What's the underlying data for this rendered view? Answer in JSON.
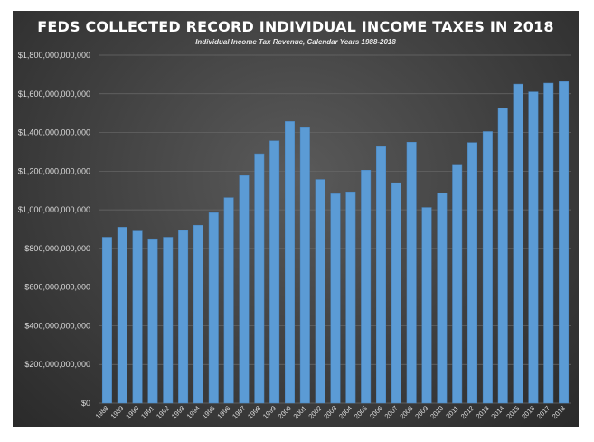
{
  "chart_data": {
    "type": "bar",
    "title": "FEDS COLLECTED RECORD INDIVIDUAL INCOME TAXES IN 2018",
    "subtitle": "Individual Income Tax Revenue, Calendar Years 1988-2018",
    "xlabel": "",
    "ylabel": "",
    "ylim": [
      0,
      1800000000000
    ],
    "grid": true,
    "y_ticks": [
      0,
      200000000000,
      400000000000,
      600000000000,
      800000000000,
      1000000000000,
      1200000000000,
      1400000000000,
      1600000000000,
      1800000000000
    ],
    "y_tick_labels": [
      "$0",
      "$200,000,000,000",
      "$400,000,000,000",
      "$600,000,000,000",
      "$800,000,000,000",
      "$1,000,000,000,000",
      "$1,200,000,000,000",
      "$1,400,000,000,000",
      "$1,600,000,000,000",
      "$1,800,000,000,000"
    ],
    "categories": [
      "1988",
      "1989",
      "1990",
      "1991",
      "1992",
      "1993",
      "1994",
      "1995",
      "1996",
      "1997",
      "1998",
      "1999",
      "2000",
      "2001",
      "2002",
      "2003",
      "2004",
      "2005",
      "2006",
      "2007",
      "2008",
      "2009",
      "2010",
      "2011",
      "2012",
      "2013",
      "2014",
      "2015",
      "2016",
      "2017",
      "2018"
    ],
    "values": [
      858000000000,
      910000000000,
      890000000000,
      850000000000,
      858000000000,
      893000000000,
      920000000000,
      985000000000,
      1063000000000,
      1177000000000,
      1290000000000,
      1357000000000,
      1457000000000,
      1425000000000,
      1157000000000,
      1083000000000,
      1093000000000,
      1205000000000,
      1327000000000,
      1140000000000,
      1350000000000,
      1012000000000,
      1088000000000,
      1235000000000,
      1348000000000,
      1405000000000,
      1525000000000,
      1650000000000,
      1610000000000,
      1655000000000,
      1663000000000
    ],
    "colors": {
      "bar": "#5b9bd5",
      "bar_edge": "#4a86c0",
      "grid": "#6a6a6a",
      "text": "#dcdcdc"
    }
  }
}
